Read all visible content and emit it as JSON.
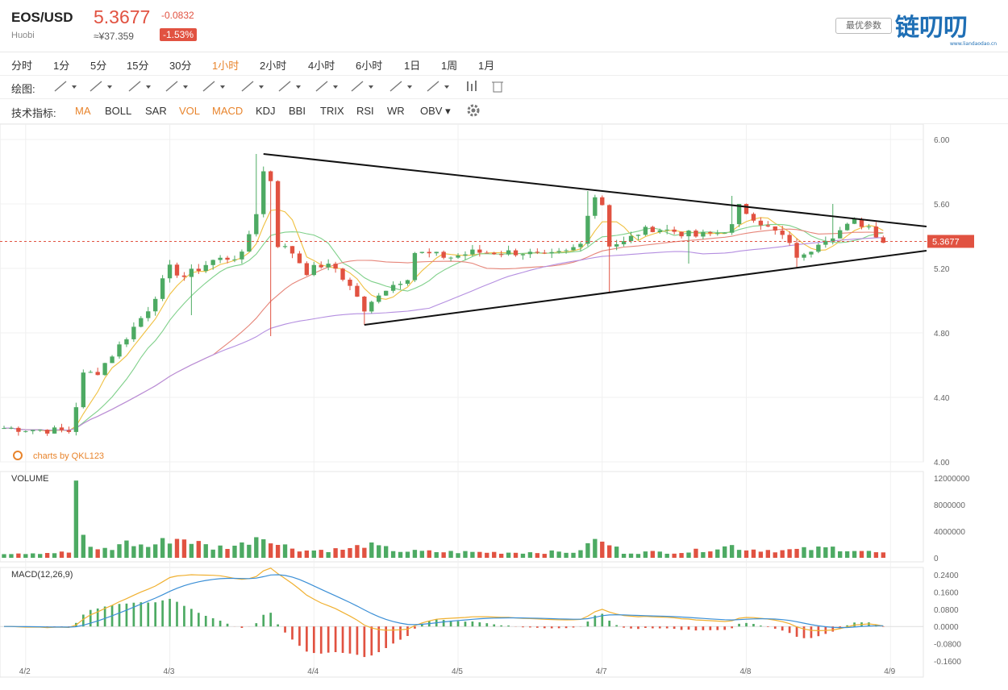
{
  "header": {
    "symbol": "EOS/USD",
    "exchange": "Huobi",
    "price": "5.3677",
    "change": "-0.0832",
    "cny_price": "≈¥37.359",
    "change_pct": "-1.53%",
    "best_params_button": "最优参数",
    "logo_text": "链叨叨",
    "logo_url_text": "www.liandaodao.cn"
  },
  "intervals": [
    {
      "label": "分时",
      "active": false
    },
    {
      "label": "1分",
      "active": false
    },
    {
      "label": "5分",
      "active": false
    },
    {
      "label": "15分",
      "active": false
    },
    {
      "label": "30分",
      "active": false
    },
    {
      "label": "1小时",
      "active": true
    },
    {
      "label": "2小时",
      "active": false
    },
    {
      "label": "4小时",
      "active": false
    },
    {
      "label": "6小时",
      "active": false
    },
    {
      "label": "1日",
      "active": false
    },
    {
      "label": "1周",
      "active": false
    },
    {
      "label": "1月",
      "active": false
    }
  ],
  "drawing": {
    "label": "绘图:",
    "tools": [
      "line-tool-icon",
      "brush-tool-icon",
      "angle-tool-icon",
      "ellipse-tool-icon",
      "wave-tool-icon",
      "pattern-tool-icon",
      "text-tool-icon",
      "fib-tool-icon",
      "arrow-tool-icon",
      "range-tool-icon",
      "comment-tool-icon",
      "bar-tool-icon",
      "trash-icon"
    ]
  },
  "indicators": {
    "label": "技术指标:",
    "items": [
      {
        "label": "MA",
        "on": true
      },
      {
        "label": "BOLL",
        "on": false
      },
      {
        "label": "SAR",
        "on": false
      },
      {
        "label": "VOL",
        "on": true
      },
      {
        "label": "MACD",
        "on": true
      },
      {
        "label": "KDJ",
        "on": false
      },
      {
        "label": "BBI",
        "on": false
      },
      {
        "label": "TRIX",
        "on": false
      },
      {
        "label": "RSI",
        "on": false
      },
      {
        "label": "WR",
        "on": false
      },
      {
        "label": "OBV",
        "on": false
      }
    ]
  },
  "chart_data": {
    "type": "candlestick",
    "watermark": "charts by QKL123",
    "current_price_label": "5.3677",
    "current_price": 5.3677,
    "price_axis": {
      "ticks": [
        "6.00",
        "5.60",
        "5.20",
        "4.80",
        "4.40",
        "4.00"
      ],
      "ylim": [
        4.0,
        6.0
      ]
    },
    "volume_axis": {
      "label": "VOLUME",
      "ticks": [
        "12000000",
        "8000000",
        "4000000",
        "0"
      ],
      "ylim": [
        0,
        12000000
      ]
    },
    "macd_axis": {
      "label": "MACD(12,26,9)",
      "ticks": [
        "0.2400",
        "0.1600",
        "0.0800",
        "0.0000",
        "-0.0800",
        "-0.1600"
      ],
      "ylim": [
        -0.16,
        0.24
      ]
    },
    "x_ticks": [
      "4/2",
      "4/3",
      "4/4",
      "4/5",
      "4/7",
      "4/8",
      "4/9"
    ],
    "x_tick_index": [
      3,
      23,
      43,
      63,
      83,
      103,
      123
    ],
    "anchors": [
      [
        0,
        4.21
      ],
      [
        9,
        4.19
      ],
      [
        10,
        4.35
      ],
      [
        11,
        4.54
      ],
      [
        13,
        4.56
      ],
      [
        16,
        4.72
      ],
      [
        20,
        4.95
      ],
      [
        23,
        5.2
      ],
      [
        25,
        5.15
      ],
      [
        29,
        5.25
      ],
      [
        33,
        5.28
      ],
      [
        35,
        5.55
      ],
      [
        36,
        5.8
      ],
      [
        37,
        5.75
      ],
      [
        38,
        5.35
      ],
      [
        40,
        5.3
      ],
      [
        42,
        5.18
      ],
      [
        44,
        5.22
      ],
      [
        46,
        5.2
      ],
      [
        49,
        5.03
      ],
      [
        50,
        4.92
      ],
      [
        52,
        5.05
      ],
      [
        54,
        5.1
      ],
      [
        56,
        5.15
      ],
      [
        57,
        5.3
      ],
      [
        60,
        5.28
      ],
      [
        62,
        5.27
      ],
      [
        65,
        5.3
      ],
      [
        67,
        5.3
      ],
      [
        72,
        5.3
      ],
      [
        75,
        5.27
      ],
      [
        78,
        5.3
      ],
      [
        80,
        5.35
      ],
      [
        81,
        5.55
      ],
      [
        82,
        5.65
      ],
      [
        83,
        5.6
      ],
      [
        84,
        5.35
      ],
      [
        86,
        5.36
      ],
      [
        88,
        5.42
      ],
      [
        90,
        5.45
      ],
      [
        93,
        5.43
      ],
      [
        96,
        5.4
      ],
      [
        99,
        5.42
      ],
      [
        101,
        5.46
      ],
      [
        102,
        5.58
      ],
      [
        104,
        5.52
      ],
      [
        106,
        5.45
      ],
      [
        108,
        5.4
      ],
      [
        110,
        5.28
      ],
      [
        111,
        5.27
      ],
      [
        113,
        5.37
      ],
      [
        115,
        5.41
      ],
      [
        117,
        5.46
      ],
      [
        118,
        5.49
      ],
      [
        120,
        5.46
      ],
      [
        122,
        5.37
      ]
    ],
    "high_spikes": [
      [
        35,
        5.91
      ],
      [
        81,
        5.68
      ],
      [
        101,
        5.65
      ],
      [
        115,
        5.6
      ]
    ],
    "low_spikes": [
      [
        26,
        4.91
      ],
      [
        37,
        4.78
      ],
      [
        50,
        4.85
      ],
      [
        84,
        5.05
      ],
      [
        95,
        5.23
      ],
      [
        110,
        5.2
      ]
    ],
    "volume_anchors": [
      [
        0,
        700000
      ],
      [
        9,
        800000
      ],
      [
        10,
        11500000
      ],
      [
        11,
        2800000
      ],
      [
        12,
        1500000
      ],
      [
        15,
        1200000
      ],
      [
        16,
        2400000
      ],
      [
        20,
        1700000
      ],
      [
        23,
        2800000
      ],
      [
        25,
        2900000
      ],
      [
        26,
        2500000
      ],
      [
        29,
        1500000
      ],
      [
        33,
        2000000
      ],
      [
        35,
        3300000
      ],
      [
        37,
        3100000
      ],
      [
        38,
        2000000
      ],
      [
        42,
        1100000
      ],
      [
        48,
        1300000
      ],
      [
        50,
        2000000
      ],
      [
        55,
        1000000
      ],
      [
        60,
        900000
      ],
      [
        70,
        800000
      ],
      [
        80,
        900000
      ],
      [
        81,
        2600000
      ],
      [
        82,
        2500000
      ],
      [
        84,
        2000000
      ],
      [
        86,
        800000
      ],
      [
        95,
        900000
      ],
      [
        101,
        1800000
      ],
      [
        103,
        1300000
      ],
      [
        108,
        1100000
      ],
      [
        110,
        1200000
      ],
      [
        115,
        1500000
      ],
      [
        120,
        900000
      ],
      [
        122,
        700000
      ]
    ],
    "trendlines": [
      {
        "from": [
          36,
          5.91
        ],
        "to": [
          128,
          5.46
        ]
      },
      {
        "from": [
          50,
          4.85
        ],
        "to": [
          128,
          5.31
        ]
      },
      {
        "from": [
          50,
          4.85
        ],
        "to": [
          128,
          5.31
        ],
        "ref": "lower"
      }
    ],
    "bar_count": 123,
    "x_max_index": 127
  }
}
